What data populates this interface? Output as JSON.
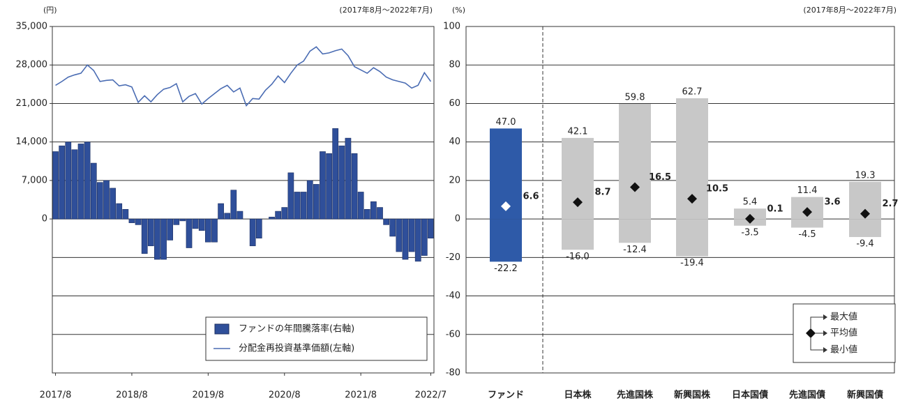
{
  "chart_data": [
    {
      "type": "combo",
      "unit_label": "(円)",
      "period": "(2017年8月～2022年7月)",
      "categories": [
        "2017/8",
        null,
        null,
        null,
        null,
        null,
        null,
        null,
        null,
        null,
        null,
        null,
        "2018/8",
        null,
        null,
        null,
        null,
        null,
        null,
        null,
        null,
        null,
        null,
        null,
        "2019/8",
        null,
        null,
        null,
        null,
        null,
        null,
        null,
        null,
        null,
        null,
        null,
        "2020/8",
        null,
        null,
        null,
        null,
        null,
        null,
        null,
        null,
        null,
        null,
        null,
        "2021/8",
        null,
        null,
        null,
        null,
        null,
        null,
        null,
        null,
        null,
        null,
        "2022/7"
      ],
      "series": [
        {
          "name": "ファンドの年間騰落率(右軸)",
          "type": "bar",
          "axis": "y2",
          "color": "#2f4f9a",
          "values": [
            35,
            38,
            40,
            36,
            39,
            40,
            29,
            19,
            20,
            16,
            8,
            5,
            -2,
            -3,
            -18,
            -14,
            -21,
            -21,
            -11,
            -3,
            -1,
            -15,
            -5,
            -6,
            -12,
            -12,
            8,
            3,
            15,
            4,
            0,
            -14,
            -10,
            0,
            1,
            4,
            6,
            24,
            14,
            14,
            20,
            18,
            35,
            34,
            47,
            38,
            42,
            34,
            14,
            5,
            9,
            6,
            -3,
            -9,
            -17,
            -21,
            -17,
            -22,
            -19,
            -10
          ]
        },
        {
          "name": "分配金再投資基準価額(左軸)",
          "type": "line",
          "axis": "y",
          "color": "#4a6cb3",
          "values": [
            24300,
            25000,
            25800,
            26200,
            26500,
            28000,
            27000,
            25000,
            25200,
            25300,
            24200,
            24400,
            24000,
            21200,
            22400,
            21300,
            22600,
            23600,
            23900,
            24600,
            21300,
            22300,
            22800,
            20900,
            21900,
            22800,
            23700,
            24300,
            23100,
            23800,
            20600,
            21900,
            21800,
            23400,
            24500,
            26000,
            24800,
            26500,
            28000,
            28700,
            30500,
            31300,
            30000,
            30200,
            30600,
            30900,
            29700,
            27700,
            27100,
            26500,
            27500,
            26800,
            25800,
            25300,
            25000,
            24700,
            23800,
            24300,
            26600,
            25000
          ]
        }
      ],
      "ylim": [
        -28000,
        35000
      ],
      "yticks": [
        0,
        {
          "value": 7000,
          "label": "7,000"
        },
        {
          "value": 14000,
          "label": "14,000"
        },
        {
          "value": 21000,
          "label": "21,000"
        },
        {
          "value": 28000,
          "label": "28,000"
        },
        {
          "value": 35000,
          "label": "35,000"
        }
      ],
      "y2lim": [
        -80,
        100
      ],
      "y2ticks": [
        -80,
        -60,
        -40,
        -20,
        0,
        20,
        40,
        60,
        80,
        100
      ],
      "grid": true,
      "legend": "bottom-right"
    },
    {
      "type": "range",
      "unit_label": "(%)",
      "period": "(2017年8月～2022年7月)",
      "categories": [
        "ファンド",
        "日本株",
        "先進国株",
        "新興国株",
        "日本国債",
        "先進国債",
        "新興国債"
      ],
      "bar_colors": [
        "#2e5aa8",
        "#c8c8c8",
        "#c8c8c8",
        "#c8c8c8",
        "#c8c8c8",
        "#c8c8c8",
        "#c8c8c8"
      ],
      "marker_colors": [
        "#ffffff",
        "#111111",
        "#111111",
        "#111111",
        "#111111",
        "#111111",
        "#111111"
      ],
      "series": [
        {
          "name": "最大値",
          "values": [
            47,
            42.1,
            59.8,
            62.7,
            5.4,
            11.4,
            19.3
          ],
          "value_labels": [
            "47.0",
            "42.1",
            "59.8",
            "62.7",
            "5.4",
            "11.4",
            "19.3"
          ]
        },
        {
          "name": "平均値",
          "values": [
            6.6,
            8.7,
            16.5,
            10.5,
            0.1,
            3.6,
            2.7
          ]
        },
        {
          "name": "最小値",
          "values": [
            -22.2,
            -16,
            -12.4,
            -19.4,
            -3.5,
            -4.5,
            -9.4
          ],
          "value_labels": [
            "-22.2",
            "-16.0",
            "-12.4",
            "-19.4",
            "-3.5",
            "-4.5",
            "-9.4"
          ]
        }
      ],
      "ylim": [
        -80,
        100
      ],
      "yticks": [
        -80,
        -60,
        -40,
        -20,
        0,
        20,
        40,
        60,
        80,
        100
      ],
      "grid": true,
      "legend": "bottom-right"
    }
  ]
}
